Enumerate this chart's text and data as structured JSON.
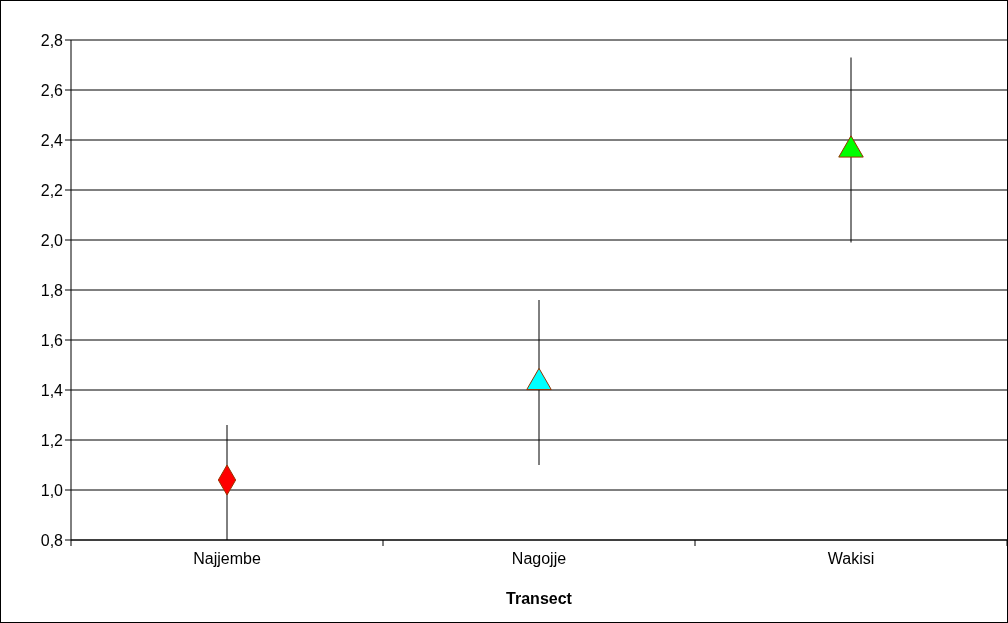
{
  "chart_data": {
    "type": "scatter",
    "xlabel": "Transect",
    "categories": [
      "Najjembe",
      "Nagojje",
      "Wakisi"
    ],
    "series": [
      {
        "color": "#ff0000",
        "marker": "diamond",
        "values": [
          1.04,
          null,
          null
        ],
        "errors": [
          [
            0.8,
            1.26
          ],
          null,
          null
        ]
      },
      {
        "color": "#00ffff",
        "marker": "triangle",
        "values": [
          null,
          1.43,
          null
        ],
        "errors": [
          null,
          0.33,
          null
        ]
      },
      {
        "color": "#00ff00",
        "marker": "triangle",
        "values": [
          null,
          null,
          2.36
        ],
        "errors": [
          null,
          null,
          0.37
        ]
      }
    ],
    "ylim": [
      0.8,
      2.8
    ],
    "yticks": [
      {
        "value": 0.8,
        "label": "0,8"
      },
      {
        "value": 1.0,
        "label": "1,0"
      },
      {
        "value": 1.2,
        "label": "1,2"
      },
      {
        "value": 1.4,
        "label": "1,4"
      },
      {
        "value": 1.6,
        "label": "1,6"
      },
      {
        "value": 1.8,
        "label": "1,8"
      },
      {
        "value": 2.0,
        "label": "2,0"
      },
      {
        "value": 2.2,
        "label": "2,2"
      },
      {
        "value": 2.4,
        "label": "2,4"
      },
      {
        "value": 2.6,
        "label": "2,6"
      },
      {
        "value": 2.8,
        "label": "2,8"
      }
    ],
    "grid": "y"
  }
}
